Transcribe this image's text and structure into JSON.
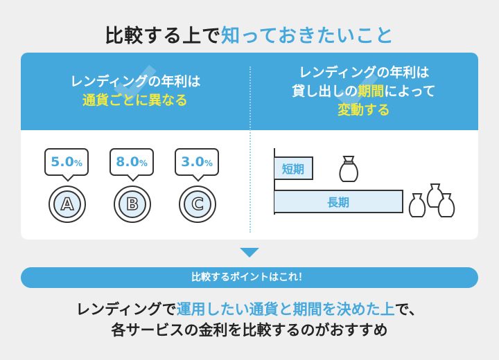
{
  "title": {
    "part1": "比較する上で",
    "part2": "知っておきたいこと"
  },
  "left": {
    "line1": "レンディングの年利は",
    "line2": "通貨ごとに異なる",
    "rates": [
      {
        "value": "5.0",
        "unit": "%",
        "coin": "A"
      },
      {
        "value": "8.0",
        "unit": "%",
        "coin": "B"
      },
      {
        "value": "3.0",
        "unit": "%",
        "coin": "C"
      }
    ]
  },
  "right": {
    "line1": "レンディングの年利は",
    "line2a": "貸し出しの",
    "line2b": "期間",
    "line2c": "によって",
    "line3": "変動する",
    "short_label": "短期",
    "long_label": "長期"
  },
  "pill": "比較するポイントはこれ！",
  "conclusion": {
    "a": "レンディングで",
    "b": "運用したい通貨と期間を決めた上",
    "c": "で、",
    "line2": "各サービスの金利を比較するのがおすすめ"
  },
  "colors": {
    "accent": "#45a8dc",
    "highlight": "#f7ea3e"
  }
}
